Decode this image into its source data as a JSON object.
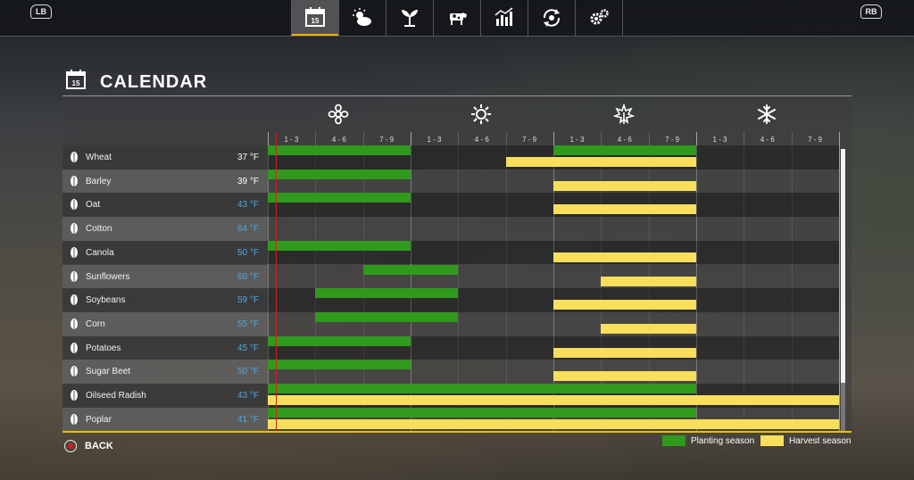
{
  "topbar": {
    "left_button": "LB",
    "right_button": "RB",
    "tabs": [
      {
        "icon": "calendar-icon",
        "label": "15",
        "active": true
      },
      {
        "icon": "weather-icon",
        "active": false
      },
      {
        "icon": "crop-icon",
        "active": false
      },
      {
        "icon": "cow-icon",
        "active": false
      },
      {
        "icon": "stats-icon",
        "active": false
      },
      {
        "icon": "cycle-icon",
        "active": false
      },
      {
        "icon": "settings-icon",
        "active": false
      }
    ]
  },
  "page": {
    "title_icon_number": "15",
    "title": "CALENDAR"
  },
  "calendar": {
    "seasons": [
      "spring-icon",
      "summer-icon",
      "autumn-icon",
      "winter-icon"
    ],
    "month_labels": [
      "1 - 3",
      "4 - 6",
      "7 - 9",
      "1 - 3",
      "4 - 6",
      "7 - 9",
      "1 - 3",
      "4 - 6",
      "7 - 9",
      "1 - 3",
      "4 - 6",
      "7 - 9"
    ],
    "crops": [
      {
        "name": "Wheat",
        "temp": "37 °F",
        "temp_color": "#ffffff",
        "planting": [
          [
            0,
            3
          ],
          [
            6,
            9
          ]
        ],
        "harvest": [
          [
            5,
            9
          ]
        ]
      },
      {
        "name": "Barley",
        "temp": "39 °F",
        "temp_color": "#ffffff",
        "planting": [
          [
            0,
            3
          ]
        ],
        "harvest": [
          [
            6,
            9
          ]
        ]
      },
      {
        "name": "Oat",
        "temp": "43 °F",
        "temp_color": "#4aa8e8",
        "planting": [
          [
            0,
            3
          ]
        ],
        "harvest": [
          [
            6,
            9
          ]
        ]
      },
      {
        "name": "Cotton",
        "temp": "64 °F",
        "temp_color": "#4aa8e8",
        "planting": [],
        "harvest": []
      },
      {
        "name": "Canola",
        "temp": "50 °F",
        "temp_color": "#4aa8e8",
        "planting": [
          [
            0,
            3
          ]
        ],
        "harvest": [
          [
            6,
            9
          ]
        ]
      },
      {
        "name": "Sunflowers",
        "temp": "60 °F",
        "temp_color": "#4aa8e8",
        "planting": [
          [
            2,
            4
          ]
        ],
        "harvest": [
          [
            7,
            9
          ]
        ]
      },
      {
        "name": "Soybeans",
        "temp": "59 °F",
        "temp_color": "#4aa8e8",
        "planting": [
          [
            1,
            4
          ]
        ],
        "harvest": [
          [
            6,
            9
          ]
        ]
      },
      {
        "name": "Corn",
        "temp": "55 °F",
        "temp_color": "#4aa8e8",
        "planting": [
          [
            1,
            4
          ]
        ],
        "harvest": [
          [
            7,
            9
          ]
        ]
      },
      {
        "name": "Potatoes",
        "temp": "45 °F",
        "temp_color": "#4aa8e8",
        "planting": [
          [
            0,
            3
          ]
        ],
        "harvest": [
          [
            6,
            9
          ]
        ]
      },
      {
        "name": "Sugar Beet",
        "temp": "50 °F",
        "temp_color": "#4aa8e8",
        "planting": [
          [
            0,
            3
          ]
        ],
        "harvest": [
          [
            6,
            9
          ]
        ]
      },
      {
        "name": "Oilseed Radish",
        "temp": "43 °F",
        "temp_color": "#4aa8e8",
        "planting": [
          [
            0,
            9
          ]
        ],
        "harvest": [
          [
            0,
            12
          ]
        ]
      },
      {
        "name": "Poplar",
        "temp": "41 °F",
        "temp_color": "#4aa8e8",
        "planting": [
          [
            0,
            9
          ]
        ],
        "harvest": [
          [
            0,
            12
          ]
        ]
      }
    ]
  },
  "footer": {
    "back_label": "BACK",
    "legend_planting": "Planting season",
    "legend_harvest": "Harvest season",
    "planting_color": "#2f9a1c",
    "harvest_color": "#f7df5c"
  }
}
